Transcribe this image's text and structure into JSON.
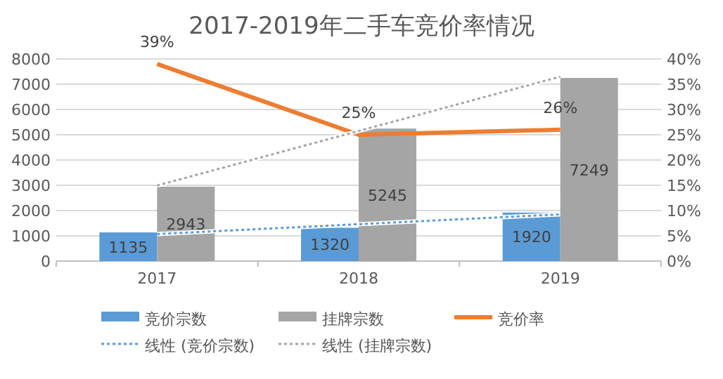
{
  "chart_data": {
    "type": "bar",
    "title": "2017-2019年二手车竞价率情况",
    "categories": [
      "2017",
      "2018",
      "2019"
    ],
    "ylim": [
      0,
      8000
    ],
    "yticks": [
      0,
      1000,
      2000,
      3000,
      4000,
      5000,
      6000,
      7000,
      8000
    ],
    "y2lim": [
      0,
      40
    ],
    "y2ticks": [
      {
        "value": 0,
        "label": "0%"
      },
      {
        "value": 5,
        "label": "5%"
      },
      {
        "value": 10,
        "label": "10%"
      },
      {
        "value": 15,
        "label": "15%"
      },
      {
        "value": 20,
        "label": "20%"
      },
      {
        "value": 25,
        "label": "25%"
      },
      {
        "value": 30,
        "label": "30%"
      },
      {
        "value": 35,
        "label": "35%"
      },
      {
        "value": 40,
        "label": "40%"
      }
    ],
    "grid": "y",
    "legend": "bottom",
    "series": [
      {
        "name": "竞价宗数",
        "color": "#5b9bd5",
        "values": [
          1135,
          1320,
          1920
        ],
        "value_labels": [
          "1135",
          "1320",
          "1920"
        ]
      },
      {
        "name": "挂牌宗数",
        "color": "#a5a5a5",
        "values": [
          2943,
          5245,
          7249
        ],
        "value_labels": [
          "2943",
          "5245",
          "7249"
        ]
      },
      {
        "name": "竞价率",
        "type": "line",
        "axis": "y2",
        "color": "#ed7d31",
        "values": [
          39,
          25,
          26
        ],
        "value_labels": [
          "39%",
          "25%",
          "26%"
        ]
      },
      {
        "name": "线性 (竞价宗数)",
        "type": "line",
        "line_style": "dotted",
        "color": "#5b9bd5",
        "values": [
          1070,
          1460,
          1850
        ]
      },
      {
        "name": "线性 (挂牌宗数)",
        "type": "line",
        "line_style": "dotted",
        "color": "#a5a5a5",
        "values": [
          2990,
          5150,
          7300
        ]
      }
    ]
  }
}
